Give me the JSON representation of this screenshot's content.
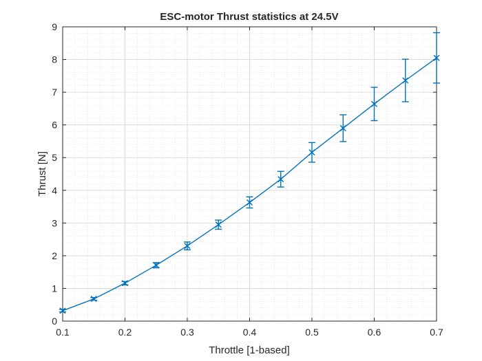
{
  "chart_data": {
    "type": "line",
    "title": "ESC-motor Thrust statistics at 24.5V",
    "xlabel": "Throttle [1-based]",
    "ylabel": "Thrust [N]",
    "xlim": [
      0.1,
      0.7
    ],
    "ylim": [
      0,
      9
    ],
    "xticks": [
      "0.1",
      "0.2",
      "0.3",
      "0.4",
      "0.5",
      "0.6",
      "0.7"
    ],
    "yticks": [
      "0",
      "1",
      "2",
      "3",
      "4",
      "5",
      "6",
      "7",
      "8",
      "9"
    ],
    "grid": true,
    "minor_grid": true,
    "marker": "x",
    "error_bars": true,
    "series": [
      {
        "color": "#0072BD",
        "x": [
          0.1,
          0.15,
          0.2,
          0.25,
          0.3,
          0.35,
          0.4,
          0.45,
          0.5,
          0.55,
          0.6,
          0.65,
          0.7
        ],
        "y": [
          0.32,
          0.68,
          1.16,
          1.71,
          2.3,
          2.95,
          3.63,
          4.34,
          5.16,
          5.9,
          6.64,
          7.36,
          8.05
        ],
        "error": [
          0.04,
          0.04,
          0.05,
          0.08,
          0.12,
          0.14,
          0.17,
          0.24,
          0.3,
          0.41,
          0.51,
          0.65,
          0.77
        ]
      }
    ]
  }
}
